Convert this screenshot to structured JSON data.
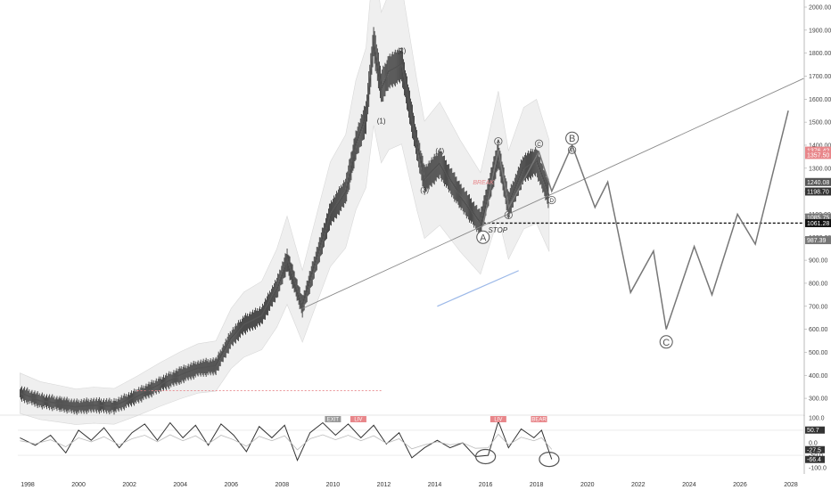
{
  "chart_data": {
    "type": "line",
    "title": "",
    "xlabel": "",
    "ylabel": "",
    "price_axis": {
      "ylim": [
        250,
        2000
      ],
      "ticks": [
        "300.00",
        "400.00",
        "500.00",
        "600.00",
        "700.00",
        "800.00",
        "900.00",
        "1000.00",
        "1100.00",
        "1200.00",
        "1300.00",
        "1400.00",
        "1500.00",
        "1600.00",
        "1700.00",
        "1800.00",
        "1900.00",
        "2000.00"
      ]
    },
    "x_axis": {
      "range": [
        1997.5,
        2028.5
      ],
      "ticks": [
        "1998",
        "2000",
        "2002",
        "2004",
        "2006",
        "2008",
        "2010",
        "2012",
        "2014",
        "2016",
        "2018",
        "2020",
        "2022",
        "2024",
        "2026",
        "2028"
      ]
    },
    "price_labels": [
      {
        "text": "1376.42",
        "value": 1376.42,
        "color": "#e8868a"
      },
      {
        "text": "1357.50",
        "value": 1357.5,
        "color": "#e8868a"
      },
      {
        "text": "1240.08",
        "value": 1240.08,
        "color": "#555555"
      },
      {
        "text": "1198.70",
        "value": 1198.7,
        "color": "#333333"
      },
      {
        "text": "1085.75",
        "value": 1085.75,
        "color": "#777777"
      },
      {
        "text": "1061.28",
        "value": 1061.28,
        "color": "#111111"
      },
      {
        "text": "987.39",
        "value": 987.39,
        "color": "#777777"
      }
    ],
    "series": [
      {
        "name": "",
        "points": [
          [
            1997.7,
            322
          ],
          [
            1998.5,
            290
          ],
          [
            1999.3,
            275
          ],
          [
            1999.9,
            263
          ],
          [
            2000.6,
            270
          ],
          [
            2001.4,
            265
          ],
          [
            2002.3,
            310
          ],
          [
            2003.2,
            360
          ],
          [
            2004.0,
            400
          ],
          [
            2004.7,
            430
          ],
          [
            2005.4,
            440
          ],
          [
            2006.0,
            560
          ],
          [
            2006.5,
            620
          ],
          [
            2007.2,
            660
          ],
          [
            2007.8,
            780
          ],
          [
            2008.2,
            900
          ],
          [
            2008.8,
            700
          ],
          [
            2009.4,
            920
          ],
          [
            2009.9,
            1100
          ],
          [
            2010.5,
            1200
          ],
          [
            2010.9,
            1400
          ],
          [
            2011.3,
            1520
          ],
          [
            2011.6,
            1850
          ],
          [
            2011.9,
            1650
          ],
          [
            2012.2,
            1720
          ],
          [
            2012.7,
            1750
          ],
          [
            2013.3,
            1400
          ],
          [
            2013.6,
            1250
          ],
          [
            2014.2,
            1320
          ],
          [
            2015.0,
            1180
          ],
          [
            2015.8,
            1060
          ],
          [
            2016.5,
            1360
          ],
          [
            2016.9,
            1140
          ],
          [
            2017.5,
            1300
          ],
          [
            2018.0,
            1330
          ],
          [
            2018.5,
            1180
          ]
        ]
      },
      {
        "name": "",
        "points": [
          [
            2015.9,
            1050
          ],
          [
            2016.5,
            1380
          ],
          [
            2016.9,
            1130
          ],
          [
            2018.1,
            1370
          ],
          [
            2018.6,
            1200
          ],
          [
            2019.4,
            1400
          ],
          [
            2020.3,
            1130
          ],
          [
            2020.8,
            1240
          ],
          [
            2021.7,
            760
          ],
          [
            2022.6,
            940
          ],
          [
            2023.1,
            600
          ],
          [
            2024.2,
            960
          ],
          [
            2024.9,
            750
          ],
          [
            2025.9,
            1100
          ],
          [
            2026.6,
            970
          ],
          [
            2027.9,
            1550
          ]
        ]
      }
    ],
    "trendline": [
      [
        2008.8,
        690
      ],
      [
        2028.5,
        1690
      ]
    ],
    "stop_level": 1061.28,
    "wave_labels": [
      {
        "text": "(1)",
        "x": 2011.9,
        "y": 1495
      },
      {
        "text": "(2)",
        "x": 2012.7,
        "y": 1800
      },
      {
        "text": "(3)",
        "x": 2013.6,
        "y": 1195
      },
      {
        "text": "(4)",
        "x": 2014.2,
        "y": 1365
      },
      {
        "text": "A",
        "x": 2016.5,
        "y": 1405
      },
      {
        "text": "B",
        "x": 2016.9,
        "y": 1085
      },
      {
        "text": "C",
        "x": 2018.1,
        "y": 1395
      },
      {
        "text": "D",
        "x": 2018.6,
        "y": 1150
      },
      {
        "text": "E",
        "x": 2019.4,
        "y": 1368
      }
    ],
    "big_wave_labels": [
      {
        "text": "A",
        "x": 2015.9,
        "y": 1000
      },
      {
        "text": "B",
        "x": 2019.4,
        "y": 1430
      },
      {
        "text": "C",
        "x": 2023.1,
        "y": 545
      }
    ],
    "annotations": [
      {
        "text": "STOP",
        "x": 2016.1,
        "y": 1020
      },
      {
        "text": "BREAK",
        "x": 2015.5,
        "y": 1230
      }
    ],
    "oscillator": {
      "ylim": [
        -110,
        110
      ],
      "ticks": [
        "100.0",
        "50.0",
        "0.0",
        "-50.0",
        "-100.0"
      ],
      "labels": [
        {
          "text": "50.7",
          "value": 50.7
        },
        {
          "text": "-27.5",
          "value": -27.5
        },
        {
          "text": "-66.4",
          "value": -66.4
        }
      ],
      "tags": [
        {
          "text": "EXIT",
          "x": 2010.0,
          "color": "#999999"
        },
        {
          "text": "LIV",
          "x": 2011.0,
          "color": "#e8868a"
        },
        {
          "text": "LIV",
          "x": 2016.5,
          "color": "#e8868a"
        },
        {
          "text": "BEAR",
          "x": 2018.1,
          "color": "#e8868a"
        }
      ],
      "values": [
        [
          1997.7,
          20
        ],
        [
          1998.3,
          -10
        ],
        [
          1998.9,
          30
        ],
        [
          1999.5,
          -40
        ],
        [
          2000.0,
          50
        ],
        [
          2000.5,
          10
        ],
        [
          2001.0,
          60
        ],
        [
          2001.6,
          -20
        ],
        [
          2002.1,
          40
        ],
        [
          2002.6,
          75
        ],
        [
          2003.1,
          10
        ],
        [
          2003.6,
          80
        ],
        [
          2004.1,
          20
        ],
        [
          2004.6,
          70
        ],
        [
          2005.1,
          -10
        ],
        [
          2005.6,
          75
        ],
        [
          2006.1,
          30
        ],
        [
          2006.6,
          -35
        ],
        [
          2007.1,
          65
        ],
        [
          2007.6,
          20
        ],
        [
          2008.1,
          70
        ],
        [
          2008.6,
          -70
        ],
        [
          2009.1,
          40
        ],
        [
          2009.6,
          80
        ],
        [
          2010.1,
          30
        ],
        [
          2010.6,
          75
        ],
        [
          2011.1,
          20
        ],
        [
          2011.6,
          70
        ],
        [
          2012.1,
          -5
        ],
        [
          2012.6,
          40
        ],
        [
          2013.1,
          -60
        ],
        [
          2013.6,
          -20
        ],
        [
          2014.1,
          10
        ],
        [
          2014.6,
          -20
        ],
        [
          2015.1,
          0
        ],
        [
          2015.6,
          -55
        ],
        [
          2016.1,
          -50
        ],
        [
          2016.5,
          85
        ],
        [
          2016.9,
          -20
        ],
        [
          2017.4,
          55
        ],
        [
          2017.9,
          20
        ],
        [
          2018.2,
          50
        ],
        [
          2018.6,
          -66
        ]
      ]
    },
    "oscillator_right": "0",
    "grid": false
  }
}
